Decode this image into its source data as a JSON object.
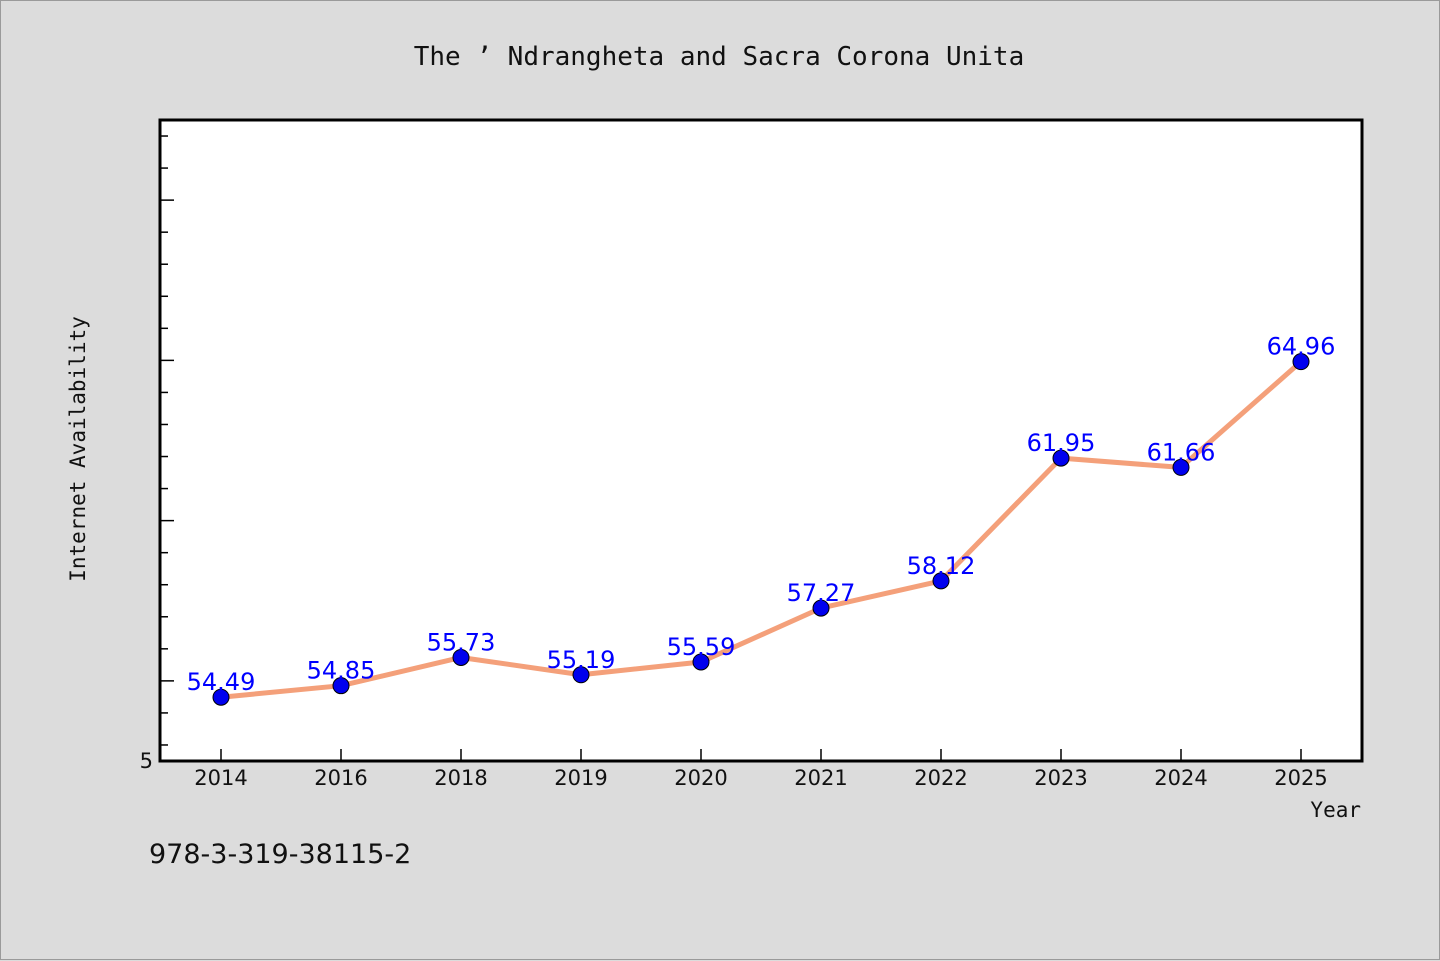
{
  "chart_data": {
    "type": "line",
    "title": "The ’ Ndrangheta and Sacra Corona Unita",
    "xlabel": "Year",
    "ylabel": "Internet Availability",
    "categories": [
      "2014",
      "2016",
      "2018",
      "2019",
      "2020",
      "2021",
      "2022",
      "2023",
      "2024",
      "2025"
    ],
    "series": [
      {
        "values": [
          54.49,
          54.85,
          55.73,
          55.19,
          55.59,
          57.27,
          58.12,
          61.95,
          61.66,
          64.96
        ],
        "data_labels": [
          "54.49",
          "54.85",
          "55.73",
          "55.19",
          "55.59",
          "57.27",
          "58.12",
          "61.95",
          "61.66",
          "64.96"
        ],
        "line_color": "#f4a07a",
        "marker_color": "#0000ee"
      }
    ],
    "ylim": [
      52.5,
      72.5
    ],
    "y_tick_labels": [
      "5"
    ],
    "grid": false,
    "plot_background": "#ffffff"
  },
  "footer": {
    "isbn": "978-3-319-38115-2"
  }
}
